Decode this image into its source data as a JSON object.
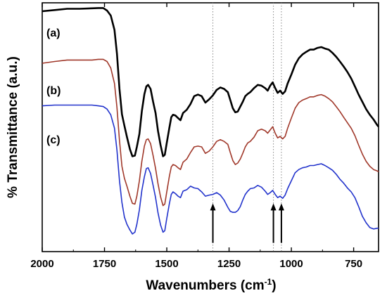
{
  "chart_data": {
    "type": "line",
    "xlabel_main": "Wavenumbers (cm",
    "xlabel_sup": "-1",
    "xlabel_close": ")",
    "ylabel": "% Transmittance (a.u.)",
    "xlim": [
      2000,
      650
    ],
    "ylim": [
      0,
      100
    ],
    "x_reversed": true,
    "yticks_labeled": false,
    "xticks": [
      2000,
      1750,
      1500,
      1250,
      1000,
      750
    ],
    "xtick_labels": [
      "2000",
      "1750",
      "1500",
      "1250",
      "1000",
      "750"
    ],
    "reference_lines_x": [
      1315,
      1072,
      1040
    ],
    "arrows_x": [
      1315,
      1072,
      1040
    ],
    "series": [
      {
        "name": "(a)",
        "color": "#000000",
        "points": [
          [
            2000,
            96.6
          ],
          [
            1950,
            97.1
          ],
          [
            1900,
            97.6
          ],
          [
            1850,
            97.6
          ],
          [
            1800,
            97.8
          ],
          [
            1775,
            97.9
          ],
          [
            1755,
            97.9
          ],
          [
            1740,
            96.9
          ],
          [
            1725,
            94.9
          ],
          [
            1710,
            89.1
          ],
          [
            1700,
            79.6
          ],
          [
            1690,
            65.4
          ],
          [
            1680,
            55.2
          ],
          [
            1670,
            50.6
          ],
          [
            1660,
            46.1
          ],
          [
            1648,
            41.2
          ],
          [
            1638,
            38.3
          ],
          [
            1628,
            38.6
          ],
          [
            1620,
            42.1
          ],
          [
            1610,
            47.3
          ],
          [
            1600,
            56.5
          ],
          [
            1590,
            63.3
          ],
          [
            1582,
            66.4
          ],
          [
            1575,
            67.0
          ],
          [
            1565,
            65.4
          ],
          [
            1555,
            60.2
          ],
          [
            1545,
            55.7
          ],
          [
            1535,
            48.4
          ],
          [
            1525,
            42.8
          ],
          [
            1515,
            38.3
          ],
          [
            1508,
            38.9
          ],
          [
            1500,
            43.7
          ],
          [
            1490,
            49.6
          ],
          [
            1482,
            54.0
          ],
          [
            1475,
            55.0
          ],
          [
            1465,
            54.7
          ],
          [
            1455,
            53.7
          ],
          [
            1445,
            52.8
          ],
          [
            1435,
            55.7
          ],
          [
            1420,
            57.0
          ],
          [
            1405,
            59.3
          ],
          [
            1390,
            62.5
          ],
          [
            1375,
            63.1
          ],
          [
            1360,
            62.5
          ],
          [
            1345,
            59.9
          ],
          [
            1330,
            61.2
          ],
          [
            1315,
            62.8
          ],
          [
            1300,
            65.0
          ],
          [
            1285,
            66.0
          ],
          [
            1270,
            65.4
          ],
          [
            1255,
            64.1
          ],
          [
            1245,
            60.9
          ],
          [
            1235,
            57.6
          ],
          [
            1225,
            56.0
          ],
          [
            1215,
            56.3
          ],
          [
            1205,
            58.3
          ],
          [
            1195,
            60.2
          ],
          [
            1185,
            62.5
          ],
          [
            1175,
            63.4
          ],
          [
            1165,
            64.1
          ],
          [
            1150,
            65.7
          ],
          [
            1135,
            67.0
          ],
          [
            1120,
            66.7
          ],
          [
            1105,
            65.7
          ],
          [
            1095,
            64.7
          ],
          [
            1085,
            66.7
          ],
          [
            1075,
            68.0
          ],
          [
            1065,
            65.7
          ],
          [
            1055,
            63.8
          ],
          [
            1045,
            64.7
          ],
          [
            1035,
            63.4
          ],
          [
            1025,
            64.4
          ],
          [
            1015,
            67.6
          ],
          [
            1000,
            71.2
          ],
          [
            985,
            75.1
          ],
          [
            970,
            77.7
          ],
          [
            955,
            79.3
          ],
          [
            940,
            80.3
          ],
          [
            925,
            81.2
          ],
          [
            910,
            81.2
          ],
          [
            895,
            81.9
          ],
          [
            880,
            82.2
          ],
          [
            865,
            81.6
          ],
          [
            850,
            81.2
          ],
          [
            835,
            79.9
          ],
          [
            820,
            78.3
          ],
          [
            805,
            76.4
          ],
          [
            790,
            74.4
          ],
          [
            775,
            72.2
          ],
          [
            760,
            69.6
          ],
          [
            745,
            66.4
          ],
          [
            730,
            63.1
          ],
          [
            715,
            60.2
          ],
          [
            700,
            57.3
          ],
          [
            685,
            55.0
          ],
          [
            670,
            53.1
          ],
          [
            655,
            50.8
          ],
          [
            650,
            50.2
          ]
        ]
      },
      {
        "name": "(b)",
        "color": "#a0382a",
        "points": [
          [
            2000,
            75.7
          ],
          [
            1950,
            76.4
          ],
          [
            1900,
            77.0
          ],
          [
            1850,
            77.0
          ],
          [
            1800,
            77.0
          ],
          [
            1775,
            77.3
          ],
          [
            1755,
            77.3
          ],
          [
            1740,
            76.4
          ],
          [
            1725,
            73.8
          ],
          [
            1710,
            67.6
          ],
          [
            1700,
            58.0
          ],
          [
            1690,
            44.7
          ],
          [
            1680,
            34.3
          ],
          [
            1670,
            29.5
          ],
          [
            1660,
            26.3
          ],
          [
            1648,
            22.3
          ],
          [
            1638,
            19.4
          ],
          [
            1628,
            19.1
          ],
          [
            1620,
            22.3
          ],
          [
            1610,
            28.5
          ],
          [
            1600,
            36.3
          ],
          [
            1590,
            42.4
          ],
          [
            1582,
            45.0
          ],
          [
            1575,
            45.3
          ],
          [
            1565,
            43.4
          ],
          [
            1555,
            38.6
          ],
          [
            1545,
            33.4
          ],
          [
            1535,
            27.2
          ],
          [
            1525,
            22.0
          ],
          [
            1515,
            18.5
          ],
          [
            1508,
            19.1
          ],
          [
            1500,
            24.0
          ],
          [
            1490,
            30.1
          ],
          [
            1482,
            34.0
          ],
          [
            1475,
            35.0
          ],
          [
            1465,
            34.6
          ],
          [
            1455,
            33.7
          ],
          [
            1445,
            33.0
          ],
          [
            1435,
            35.9
          ],
          [
            1420,
            37.2
          ],
          [
            1405,
            39.8
          ],
          [
            1390,
            42.1
          ],
          [
            1375,
            42.4
          ],
          [
            1360,
            42.1
          ],
          [
            1345,
            39.5
          ],
          [
            1330,
            40.4
          ],
          [
            1315,
            42.1
          ],
          [
            1300,
            44.3
          ],
          [
            1285,
            45.0
          ],
          [
            1270,
            44.3
          ],
          [
            1255,
            43.1
          ],
          [
            1245,
            39.8
          ],
          [
            1235,
            36.6
          ],
          [
            1225,
            35.0
          ],
          [
            1215,
            35.6
          ],
          [
            1205,
            37.2
          ],
          [
            1195,
            39.5
          ],
          [
            1185,
            42.1
          ],
          [
            1175,
            43.7
          ],
          [
            1165,
            44.3
          ],
          [
            1150,
            46.0
          ],
          [
            1135,
            48.6
          ],
          [
            1120,
            49.2
          ],
          [
            1105,
            48.6
          ],
          [
            1095,
            47.6
          ],
          [
            1085,
            48.9
          ],
          [
            1075,
            50.2
          ],
          [
            1065,
            47.6
          ],
          [
            1055,
            45.7
          ],
          [
            1045,
            46.3
          ],
          [
            1035,
            45.3
          ],
          [
            1025,
            46.3
          ],
          [
            1015,
            49.6
          ],
          [
            1000,
            53.7
          ],
          [
            985,
            57.6
          ],
          [
            970,
            59.9
          ],
          [
            955,
            60.9
          ],
          [
            940,
            61.5
          ],
          [
            925,
            62.2
          ],
          [
            910,
            62.2
          ],
          [
            895,
            62.8
          ],
          [
            880,
            63.1
          ],
          [
            865,
            62.5
          ],
          [
            850,
            61.5
          ],
          [
            835,
            60.2
          ],
          [
            820,
            58.3
          ],
          [
            805,
            56.3
          ],
          [
            790,
            54.0
          ],
          [
            775,
            51.8
          ],
          [
            760,
            49.6
          ],
          [
            745,
            46.6
          ],
          [
            730,
            42.8
          ],
          [
            715,
            39.2
          ],
          [
            700,
            36.3
          ],
          [
            685,
            34.3
          ],
          [
            670,
            33.0
          ],
          [
            655,
            32.4
          ],
          [
            650,
            32.1
          ]
        ]
      },
      {
        "name": "(c)",
        "color": "#2233cc",
        "points": [
          [
            2000,
            58.6
          ],
          [
            1950,
            58.9
          ],
          [
            1900,
            58.9
          ],
          [
            1850,
            58.9
          ],
          [
            1800,
            58.9
          ],
          [
            1775,
            58.6
          ],
          [
            1755,
            58.3
          ],
          [
            1740,
            57.3
          ],
          [
            1725,
            55.0
          ],
          [
            1710,
            49.6
          ],
          [
            1700,
            40.8
          ],
          [
            1690,
            28.5
          ],
          [
            1680,
            19.7
          ],
          [
            1670,
            13.9
          ],
          [
            1660,
            11.0
          ],
          [
            1648,
            8.7
          ],
          [
            1638,
            7.1
          ],
          [
            1628,
            7.8
          ],
          [
            1620,
            11.0
          ],
          [
            1610,
            16.8
          ],
          [
            1600,
            24.6
          ],
          [
            1590,
            30.1
          ],
          [
            1582,
            33.4
          ],
          [
            1575,
            33.7
          ],
          [
            1565,
            31.4
          ],
          [
            1555,
            26.6
          ],
          [
            1545,
            21.7
          ],
          [
            1535,
            15.5
          ],
          [
            1525,
            10.7
          ],
          [
            1515,
            7.8
          ],
          [
            1508,
            8.4
          ],
          [
            1500,
            13.3
          ],
          [
            1490,
            19.1
          ],
          [
            1482,
            23.0
          ],
          [
            1475,
            24.0
          ],
          [
            1465,
            23.3
          ],
          [
            1455,
            22.3
          ],
          [
            1445,
            21.7
          ],
          [
            1435,
            24.3
          ],
          [
            1420,
            24.9
          ],
          [
            1405,
            26.3
          ],
          [
            1390,
            25.6
          ],
          [
            1375,
            25.3
          ],
          [
            1360,
            24.0
          ],
          [
            1345,
            22.3
          ],
          [
            1330,
            22.7
          ],
          [
            1315,
            23.0
          ],
          [
            1300,
            23.7
          ],
          [
            1285,
            22.7
          ],
          [
            1270,
            20.7
          ],
          [
            1255,
            17.8
          ],
          [
            1245,
            16.2
          ],
          [
            1235,
            15.8
          ],
          [
            1225,
            15.8
          ],
          [
            1215,
            16.5
          ],
          [
            1205,
            18.1
          ],
          [
            1195,
            20.7
          ],
          [
            1185,
            23.0
          ],
          [
            1175,
            24.3
          ],
          [
            1165,
            25.3
          ],
          [
            1150,
            25.6
          ],
          [
            1135,
            26.6
          ],
          [
            1120,
            25.9
          ],
          [
            1105,
            24.3
          ],
          [
            1095,
            23.0
          ],
          [
            1085,
            23.7
          ],
          [
            1075,
            24.6
          ],
          [
            1065,
            23.0
          ],
          [
            1055,
            21.7
          ],
          [
            1045,
            22.3
          ],
          [
            1035,
            21.4
          ],
          [
            1025,
            22.7
          ],
          [
            1015,
            25.3
          ],
          [
            1000,
            28.5
          ],
          [
            985,
            31.7
          ],
          [
            970,
            33.0
          ],
          [
            955,
            33.7
          ],
          [
            940,
            34.0
          ],
          [
            925,
            34.6
          ],
          [
            910,
            34.6
          ],
          [
            895,
            35.0
          ],
          [
            880,
            35.3
          ],
          [
            865,
            34.6
          ],
          [
            850,
            33.7
          ],
          [
            835,
            32.7
          ],
          [
            820,
            31.1
          ],
          [
            805,
            29.1
          ],
          [
            790,
            27.5
          ],
          [
            775,
            25.6
          ],
          [
            760,
            24.0
          ],
          [
            745,
            21.7
          ],
          [
            730,
            18.1
          ],
          [
            715,
            14.2
          ],
          [
            700,
            11.6
          ],
          [
            685,
            9.7
          ],
          [
            670,
            9.1
          ],
          [
            655,
            9.4
          ],
          [
            650,
            9.4
          ]
        ]
      }
    ]
  }
}
